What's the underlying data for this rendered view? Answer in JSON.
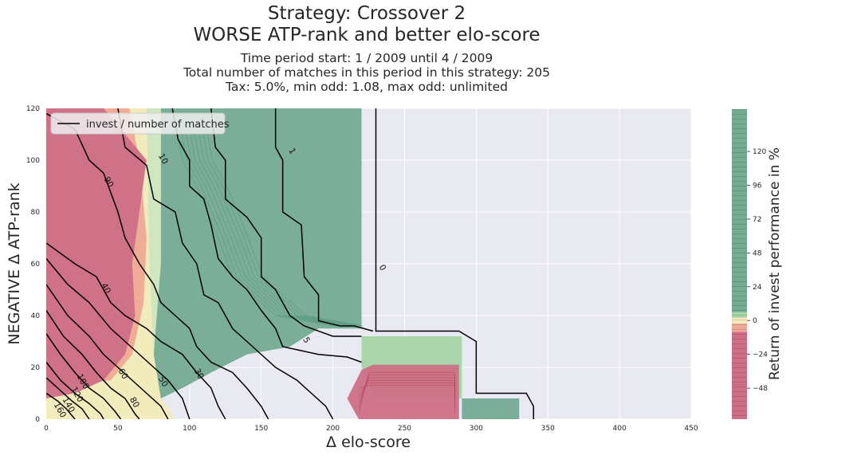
{
  "title": {
    "line1": "Strategy: Crossover 2",
    "line2": "WORSE ATP-rank and better elo-score"
  },
  "subtitle": {
    "line1": "Time period start: 1 / 2009 until 4 / 2009",
    "line2": "Total number of matches in this period in this strategy: 205",
    "line3": "Tax: 5.0%, min odd: 1.08, max odd: unlimited"
  },
  "legend": {
    "label": "invest / number of matches",
    "placement": "upper-left"
  },
  "colors": {
    "axes_bg": "#e9e9f1",
    "grid": "#ffffff",
    "dark_green": "#75ab92",
    "deep_green": "#3f8f6a",
    "light_green": "#a7d3a5",
    "pale_green": "#cde6be",
    "pale_yellow": "#f3ebbb",
    "salmon": "#eeaa96",
    "dark_red": "#cd6f86",
    "contour_line": "#000000"
  },
  "chart_data": {
    "type": "heatmap",
    "xlabel": "Δ elo-score",
    "ylabel": "NEGATIVE Δ ATP-rank",
    "xlim": [
      0,
      450
    ],
    "ylim": [
      0,
      120
    ],
    "xticks": [
      0,
      50,
      100,
      150,
      200,
      250,
      300,
      350,
      400,
      450
    ],
    "yticks": [
      0,
      20,
      40,
      60,
      80,
      100,
      120
    ],
    "grid": true,
    "colorbar": {
      "label": "Return of invest performance in %",
      "ticks": [
        -48,
        -24,
        0,
        24,
        48,
        72,
        96,
        120
      ],
      "range": [
        -70,
        150
      ]
    },
    "regions": [
      {
        "name": "strong-positive",
        "color": "dark_green",
        "points": [
          [
            80,
            120
          ],
          [
            220,
            120
          ],
          [
            220,
            35
          ],
          [
            190,
            35
          ],
          [
            170,
            28
          ],
          [
            140,
            25
          ],
          [
            115,
            18
          ],
          [
            95,
            12
          ],
          [
            80,
            8
          ],
          [
            75,
            25
          ],
          [
            80,
            60
          ],
          [
            80,
            90
          ]
        ]
      },
      {
        "name": "mid-positive",
        "color": "light_green",
        "points": [
          [
            220,
            32
          ],
          [
            290,
            32
          ],
          [
            290,
            8
          ],
          [
            230,
            8
          ],
          [
            220,
            20
          ]
        ]
      },
      {
        "name": "lower-right-positive",
        "color": "dark_green",
        "points": [
          [
            290,
            8
          ],
          [
            330,
            8
          ],
          [
            330,
            0
          ],
          [
            290,
            0
          ]
        ]
      },
      {
        "name": "loss-block",
        "color": "dark_red",
        "points": [
          [
            220,
            19
          ],
          [
            228,
            21
          ],
          [
            288,
            21
          ],
          [
            288,
            0
          ],
          [
            218,
            0
          ],
          [
            210,
            8
          ]
        ]
      },
      {
        "name": "loss-upper-left",
        "color": "dark_red",
        "points": [
          [
            0,
            120
          ],
          [
            40,
            120
          ],
          [
            55,
            110
          ],
          [
            70,
            100
          ],
          [
            65,
            80
          ],
          [
            60,
            60
          ],
          [
            62,
            40
          ],
          [
            55,
            25
          ],
          [
            40,
            15
          ],
          [
            20,
            10
          ],
          [
            0,
            8
          ]
        ]
      }
    ],
    "contours": [
      {
        "level": 0,
        "points": [
          [
            230,
            120
          ],
          [
            230,
            34
          ],
          [
            288,
            34
          ],
          [
            300,
            30
          ],
          [
            300,
            10
          ],
          [
            335,
            10
          ],
          [
            340,
            5
          ],
          [
            340,
            0
          ]
        ]
      },
      {
        "level": 1,
        "points": [
          [
            160,
            120
          ],
          [
            160,
            105
          ],
          [
            165,
            100
          ],
          [
            165,
            80
          ],
          [
            178,
            75
          ],
          [
            180,
            55
          ],
          [
            190,
            48
          ],
          [
            190,
            38
          ],
          [
            205,
            36
          ],
          [
            215,
            36
          ],
          [
            228,
            34
          ]
        ]
      },
      {
        "level": 5,
        "points": [
          [
            115,
            120
          ],
          [
            118,
            105
          ],
          [
            125,
            100
          ],
          [
            125,
            85
          ],
          [
            140,
            78
          ],
          [
            150,
            70
          ],
          [
            150,
            55
          ],
          [
            160,
            50
          ],
          [
            170,
            40
          ],
          [
            180,
            36
          ],
          [
            200,
            32
          ],
          [
            220,
            32
          ]
        ]
      },
      {
        "level": 10,
        "points": [
          [
            88,
            120
          ],
          [
            92,
            108
          ],
          [
            100,
            100
          ],
          [
            100,
            90
          ],
          [
            110,
            85
          ],
          [
            115,
            75
          ],
          [
            120,
            62
          ],
          [
            130,
            55
          ],
          [
            140,
            50
          ],
          [
            150,
            42
          ],
          [
            160,
            35
          ],
          [
            165,
            28
          ],
          [
            190,
            25
          ],
          [
            210,
            24
          ],
          [
            220,
            22
          ]
        ]
      },
      {
        "level": 20,
        "points": [
          [
            50,
            120
          ],
          [
            55,
            105
          ],
          [
            70,
            98
          ],
          [
            75,
            85
          ],
          [
            90,
            80
          ],
          [
            95,
            68
          ],
          [
            105,
            60
          ],
          [
            110,
            48
          ],
          [
            120,
            45
          ],
          [
            130,
            35
          ],
          [
            140,
            30
          ],
          [
            150,
            25
          ],
          [
            160,
            20
          ],
          [
            175,
            15
          ],
          [
            185,
            10
          ],
          [
            195,
            5
          ],
          [
            200,
            0
          ]
        ]
      },
      {
        "level": 30,
        "points": [
          [
            0,
            118
          ],
          [
            20,
            112
          ],
          [
            30,
            100
          ],
          [
            40,
            95
          ],
          [
            50,
            80
          ],
          [
            55,
            70
          ],
          [
            65,
            60
          ],
          [
            75,
            52
          ],
          [
            80,
            45
          ],
          [
            90,
            40
          ],
          [
            100,
            35
          ],
          [
            105,
            28
          ],
          [
            115,
            22
          ],
          [
            130,
            18
          ],
          [
            140,
            12
          ],
          [
            150,
            5
          ],
          [
            155,
            0
          ]
        ]
      },
      {
        "level": 40,
        "points": [
          [
            0,
            68
          ],
          [
            20,
            60
          ],
          [
            35,
            55
          ],
          [
            45,
            45
          ],
          [
            55,
            40
          ],
          [
            70,
            35
          ],
          [
            80,
            30
          ],
          [
            95,
            25
          ],
          [
            105,
            18
          ],
          [
            115,
            12
          ],
          [
            120,
            5
          ],
          [
            125,
            0
          ]
        ]
      },
      {
        "level": 50,
        "points": [
          [
            0,
            62
          ],
          [
            15,
            52
          ],
          [
            30,
            45
          ],
          [
            45,
            35
          ],
          [
            55,
            30
          ],
          [
            65,
            25
          ],
          [
            75,
            20
          ],
          [
            85,
            15
          ],
          [
            95,
            8
          ],
          [
            100,
            0
          ]
        ]
      },
      {
        "level": 60,
        "points": [
          [
            0,
            52
          ],
          [
            15,
            40
          ],
          [
            30,
            32
          ],
          [
            40,
            25
          ],
          [
            50,
            20
          ],
          [
            60,
            15
          ],
          [
            70,
            10
          ],
          [
            80,
            5
          ],
          [
            85,
            0
          ]
        ]
      },
      {
        "level": 80,
        "points": [
          [
            0,
            42
          ],
          [
            12,
            32
          ],
          [
            25,
            25
          ],
          [
            35,
            18
          ],
          [
            45,
            12
          ],
          [
            55,
            8
          ],
          [
            62,
            2
          ],
          [
            65,
            0
          ]
        ]
      },
      {
        "level": 100,
        "points": [
          [
            0,
            33
          ],
          [
            10,
            25
          ],
          [
            20,
            18
          ],
          [
            30,
            12
          ],
          [
            40,
            8
          ],
          [
            48,
            3
          ],
          [
            52,
            0
          ]
        ]
      },
      {
        "level": 120,
        "points": [
          [
            0,
            22
          ],
          [
            10,
            15
          ],
          [
            20,
            10
          ],
          [
            30,
            6
          ],
          [
            38,
            2
          ],
          [
            40,
            0
          ]
        ]
      },
      {
        "level": 140,
        "points": [
          [
            0,
            16
          ],
          [
            10,
            11
          ],
          [
            18,
            7
          ],
          [
            25,
            4
          ],
          [
            30,
            0
          ]
        ]
      },
      {
        "level": 160,
        "points": [
          [
            0,
            10
          ],
          [
            8,
            7
          ],
          [
            14,
            4
          ],
          [
            20,
            0
          ]
        ]
      }
    ],
    "contour_labels": [
      {
        "text": "0",
        "x": 233,
        "y": 58
      },
      {
        "text": "1",
        "x": 170,
        "y": 103
      },
      {
        "text": "5",
        "x": 180,
        "y": 30
      },
      {
        "text": "10",
        "x": 80,
        "y": 100
      },
      {
        "text": "30",
        "x": 105,
        "y": 17
      },
      {
        "text": "40",
        "x": 40,
        "y": 50
      },
      {
        "text": "50",
        "x": 80,
        "y": 14
      },
      {
        "text": "60",
        "x": 52,
        "y": 17
      },
      {
        "text": "80",
        "x": 60,
        "y": 6
      },
      {
        "text": "90",
        "x": 42,
        "y": 91
      },
      {
        "text": "100",
        "x": 24,
        "y": 14
      },
      {
        "text": "120",
        "x": 20,
        "y": 9
      },
      {
        "text": "140",
        "x": 14,
        "y": 5
      },
      {
        "text": "160",
        "x": 8,
        "y": 3
      }
    ]
  }
}
